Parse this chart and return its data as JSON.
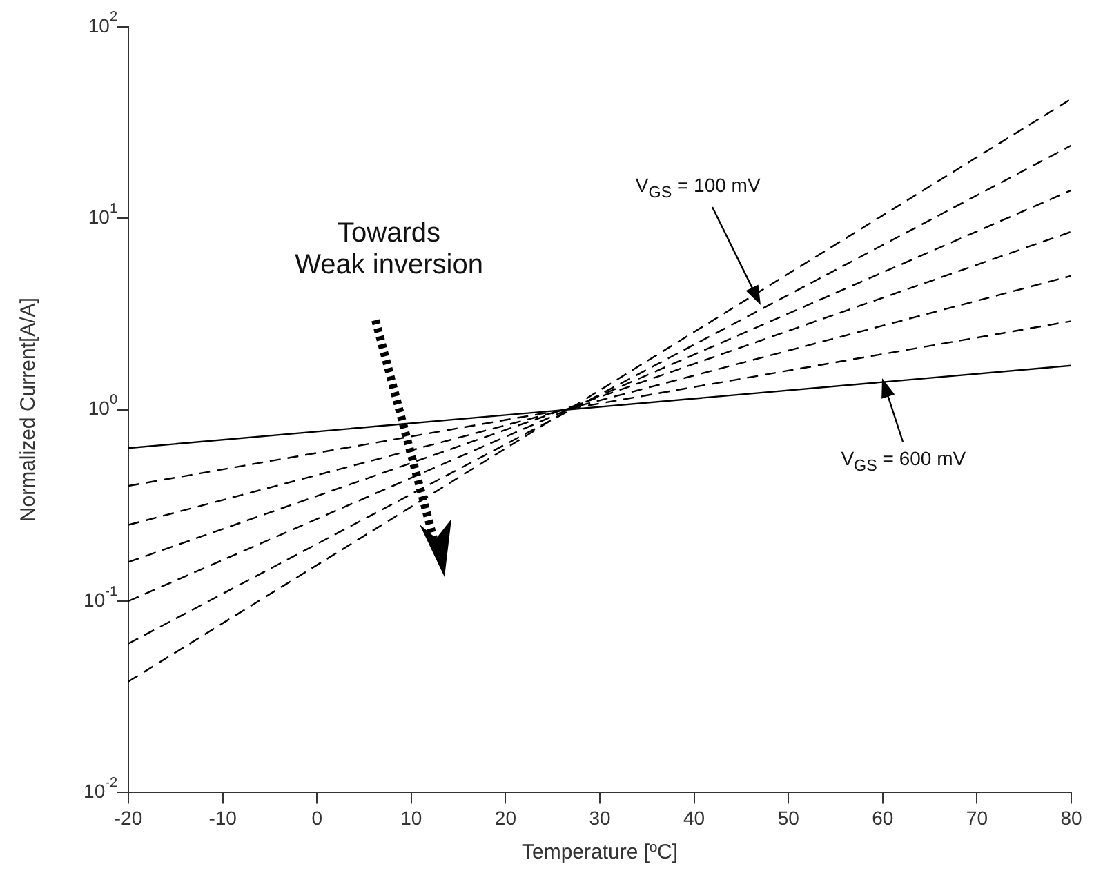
{
  "chart_data": {
    "type": "line",
    "xlabel": "Temperature [ºC]",
    "ylabel": "Normalized Current[A/A]",
    "log": "y",
    "grid": false,
    "legend": false,
    "marker": "none",
    "x": [
      -20,
      80
    ],
    "xlim": [
      -20,
      80
    ],
    "xticks": [
      -20,
      -10,
      0,
      10,
      20,
      30,
      40,
      50,
      60,
      70,
      80
    ],
    "ylim": [
      0.01,
      100
    ],
    "yticks": [
      {
        "value": 0.01,
        "label": "10$^{-2}$"
      },
      {
        "value": 0.1,
        "label": "10$^{-1}$"
      },
      {
        "value": 1,
        "label": "10$^{0}$"
      },
      {
        "value": 10,
        "label": "10$^{1}$"
      },
      {
        "value": 100,
        "label": "10$^{2}$"
      }
    ],
    "series": [
      {
        "color": "#000000",
        "line_style": "solid",
        "values": [
          0.63,
          1.7
        ]
      },
      {
        "color": "#000000",
        "line_style": "dashed",
        "values": [
          0.4,
          2.9
        ]
      },
      {
        "color": "#000000",
        "line_style": "dashed",
        "values": [
          0.25,
          5
        ]
      },
      {
        "color": "#000000",
        "line_style": "dashed",
        "values": [
          0.16,
          8.5
        ]
      },
      {
        "color": "#000000",
        "line_style": "dashed",
        "values": [
          0.1,
          14
        ]
      },
      {
        "color": "#000000",
        "line_style": "dashed",
        "values": [
          0.06,
          24
        ]
      },
      {
        "color": "#000000",
        "line_style": "dashed",
        "values": [
          0.038,
          42
        ]
      }
    ],
    "annotations": [
      {
        "text": "V$_{GS}$ = 100 mV",
        "x": 47,
        "y": 3.5
      },
      {
        "text": "V$_{GS}$ = 600 mV",
        "x": 60,
        "y": 1.45
      },
      "Towards\nWeak inversion"
    ]
  }
}
